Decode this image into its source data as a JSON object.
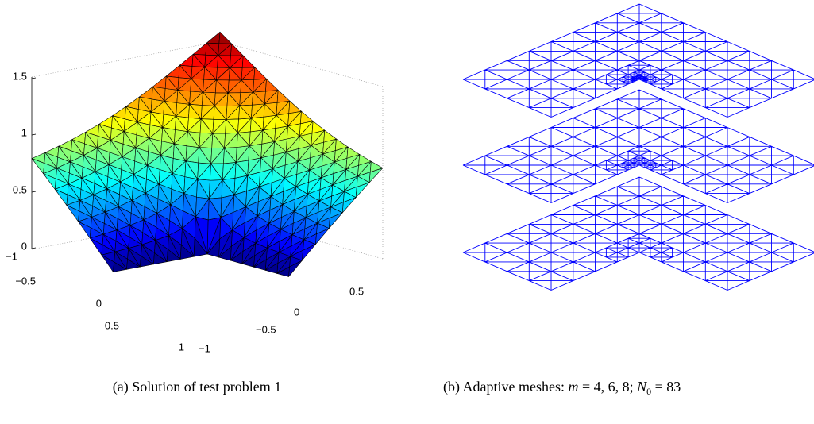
{
  "panel_a": {
    "zticks": [
      "0",
      "0.5",
      "1",
      "1.5"
    ],
    "xticks": [
      "−1",
      "−0.5",
      "0",
      "0.5",
      "1"
    ],
    "yticks": [
      "−1",
      "−0.5",
      "0",
      "0.5"
    ],
    "caption": "(a) Solution of test problem 1"
  },
  "panel_b": {
    "caption": [
      "(b) Adaptive meshes: ",
      "m",
      " = 4, 6, 8; ",
      "N",
      "0",
      " = 83"
    ]
  }
}
